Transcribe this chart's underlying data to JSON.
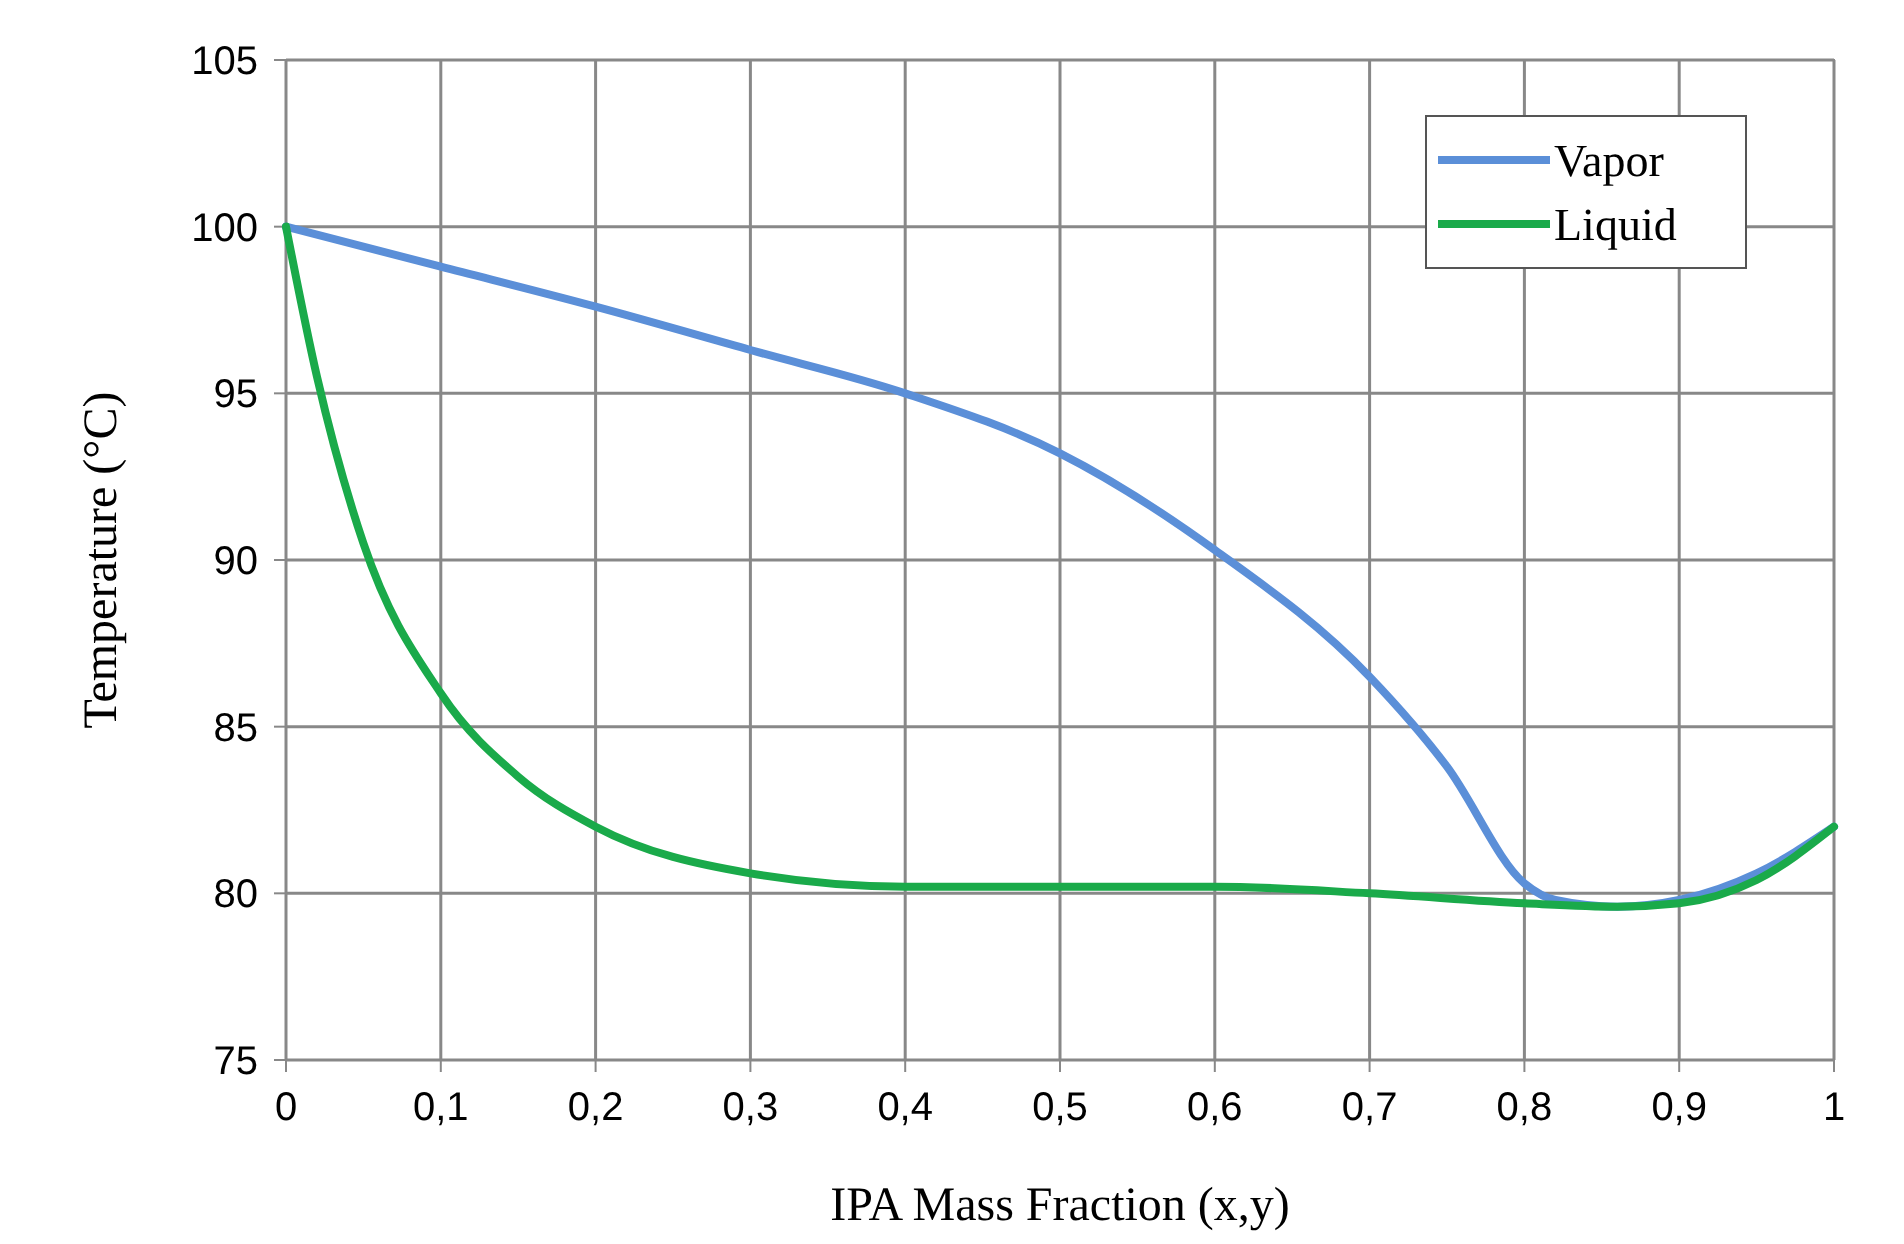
{
  "chart_data": {
    "type": "line",
    "xlabel": "IPA Mass Fraction (x,y)",
    "ylabel": "Temperature (°C)",
    "xlim": [
      0,
      1
    ],
    "ylim": [
      75,
      105
    ],
    "xticks": [
      0,
      {
        "value": 0.1,
        "label": "0,1"
      },
      {
        "value": 0.2,
        "label": "0,2"
      },
      {
        "value": 0.3,
        "label": "0,3"
      },
      {
        "value": 0.4,
        "label": "0,4"
      },
      {
        "value": 0.5,
        "label": "0,5"
      },
      {
        "value": 0.6,
        "label": "0,6"
      },
      {
        "value": 0.7,
        "label": "0,7"
      },
      {
        "value": 0.8,
        "label": "0,8"
      },
      {
        "value": 0.9,
        "label": "0,9"
      },
      1
    ],
    "yticks": [
      75,
      80,
      85,
      90,
      95,
      100,
      105
    ],
    "grid": true,
    "legend": "top right",
    "marker": "none",
    "line_style": "solid",
    "series": [
      {
        "name": "Vapor",
        "color": "#5b8fd8",
        "x": [
          0,
          0.1,
          0.2,
          0.3,
          0.4,
          0.5,
          0.6,
          0.7,
          0.75,
          0.8,
          0.82,
          0.86,
          0.9,
          0.95,
          1
        ],
        "values": [
          100,
          98.8,
          97.6,
          96.3,
          95,
          93.2,
          90.3,
          86.5,
          83.8,
          80.3,
          79.8,
          79.6,
          79.8,
          80.6,
          82
        ]
      },
      {
        "name": "Liquid",
        "color": "#1aaa4a",
        "x": [
          0,
          0.02,
          0.05,
          0.1,
          0.15,
          0.2,
          0.3,
          0.4,
          0.5,
          0.6,
          0.7,
          0.8,
          0.86,
          0.9,
          0.95,
          1
        ],
        "values": [
          100,
          95.5,
          90.5,
          86,
          83.5,
          82,
          80.6,
          80.2,
          80.2,
          80.2,
          80,
          79.7,
          79.6,
          79.7,
          80.4,
          82
        ]
      }
    ]
  }
}
